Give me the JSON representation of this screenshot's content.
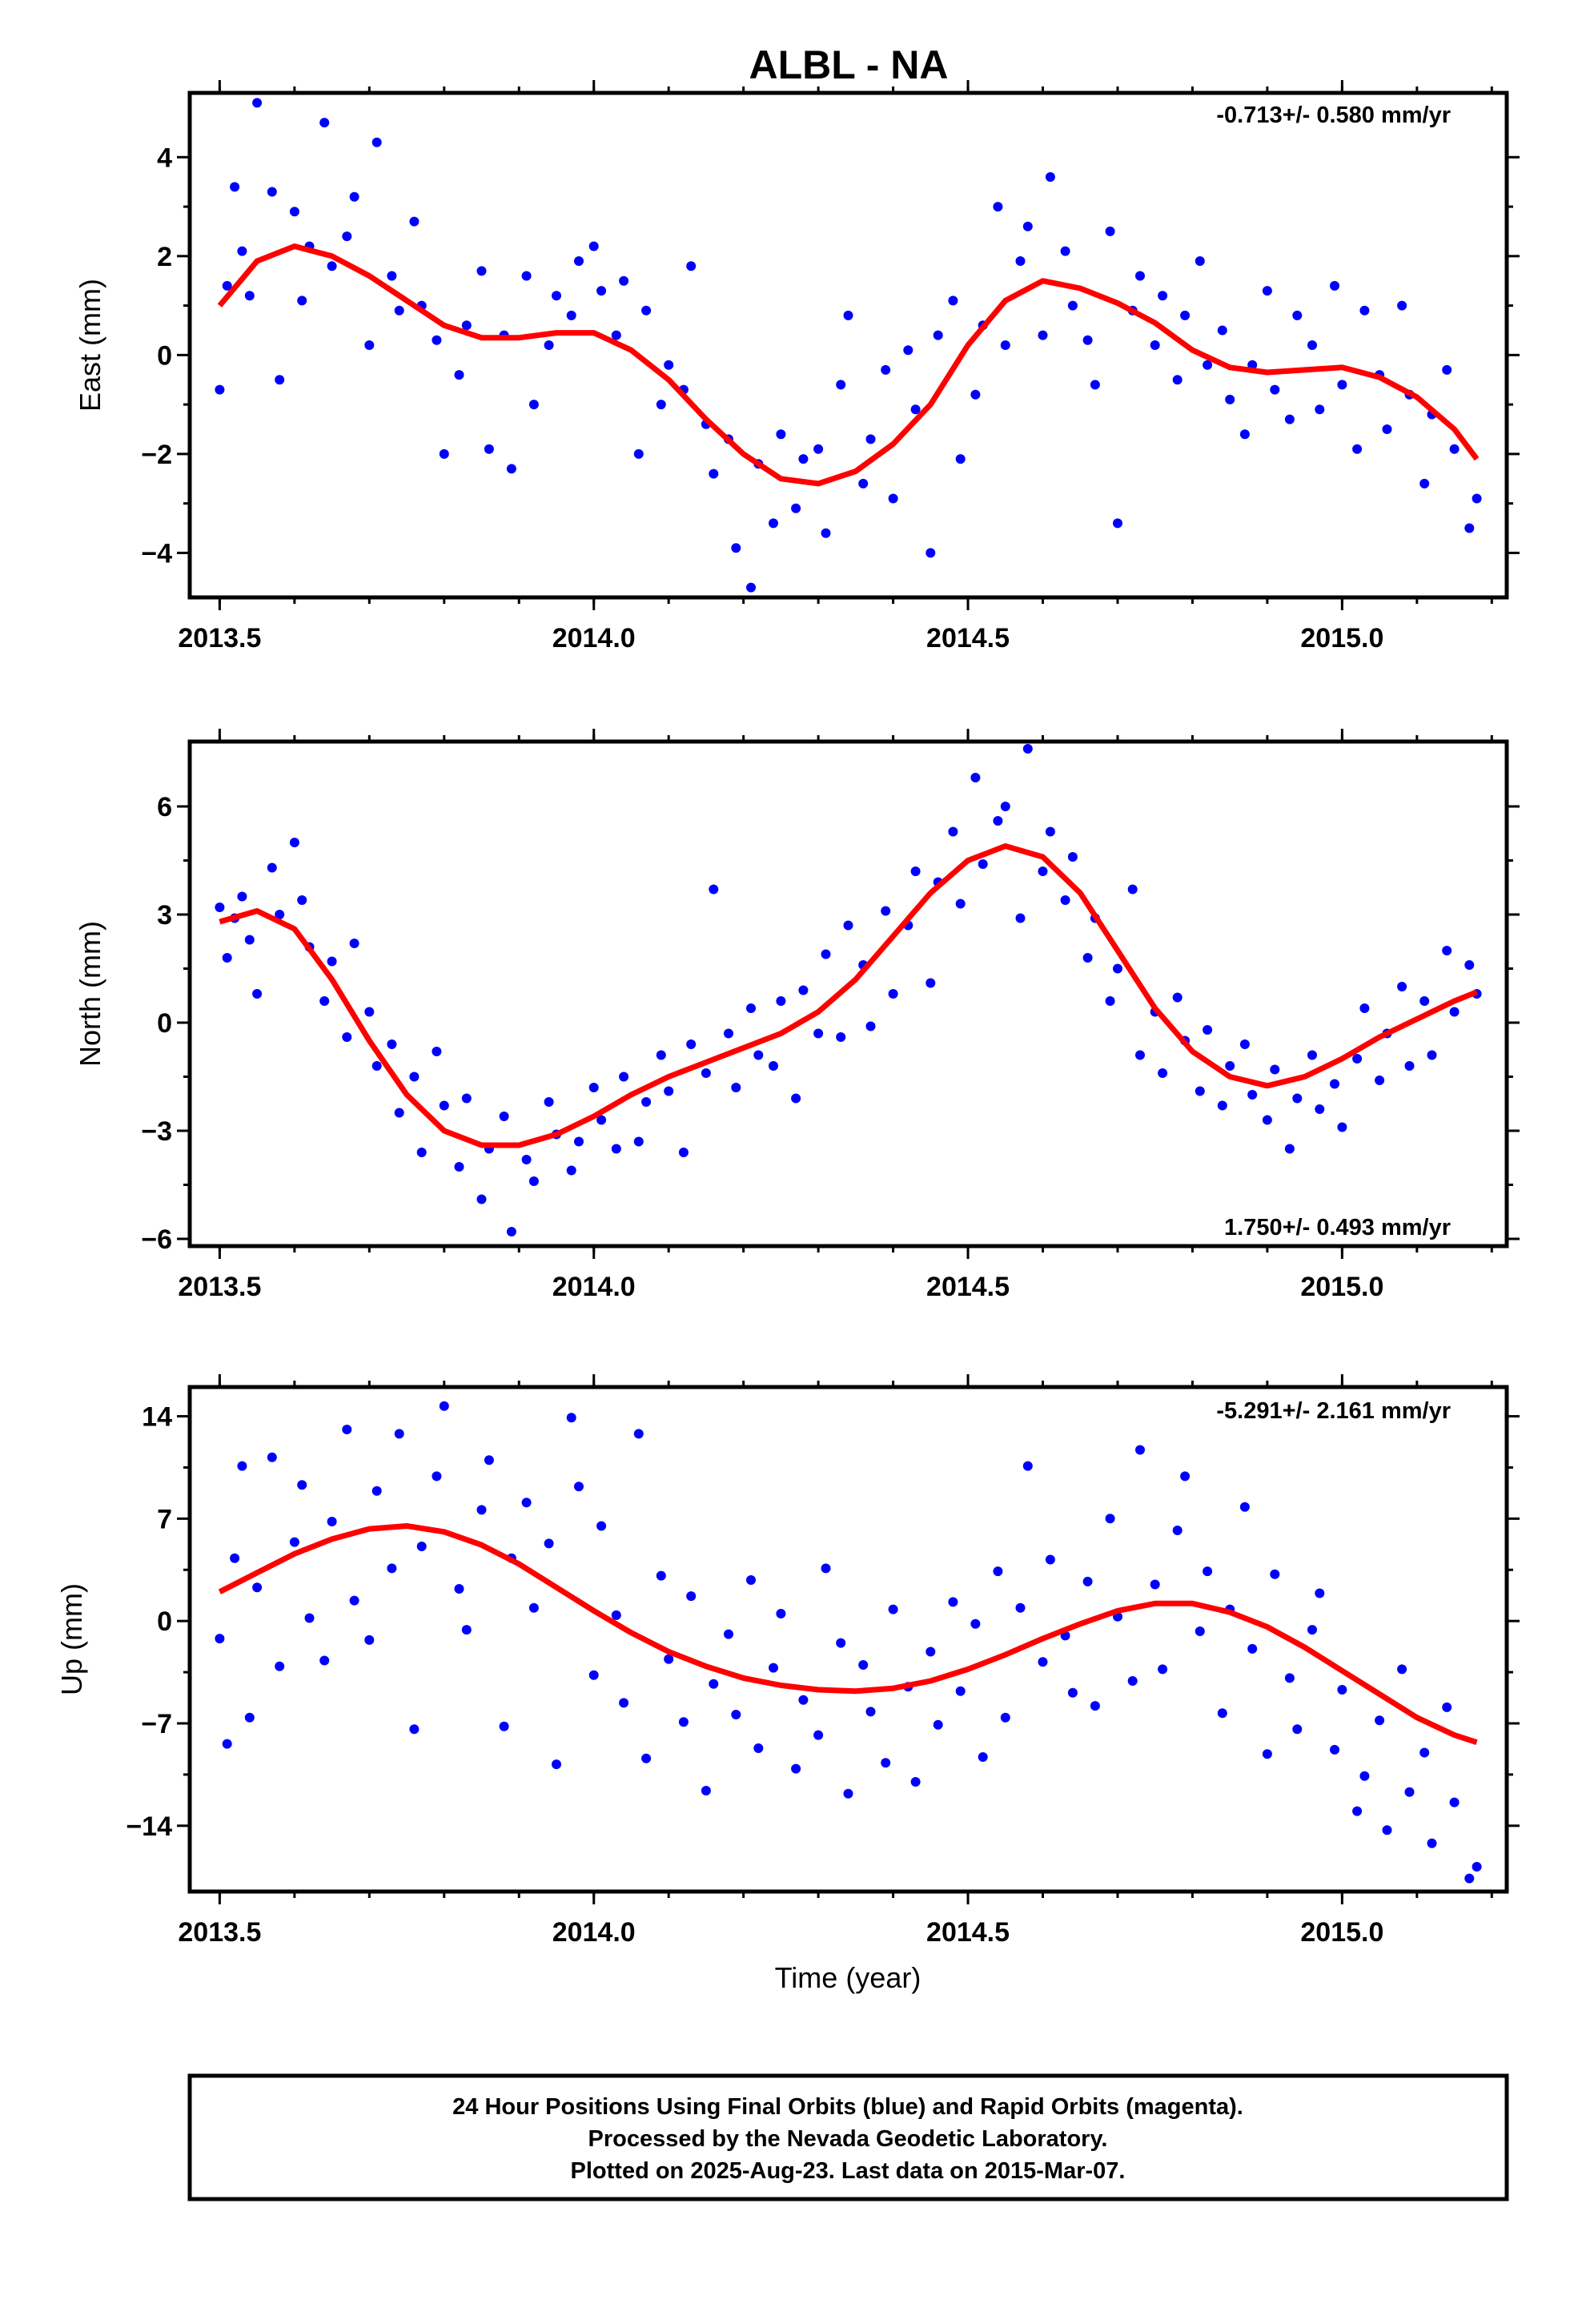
{
  "title": "ALBL - NA",
  "xlabel": "Time (year)",
  "footer": {
    "line1": "24 Hour Positions Using Final Orbits (blue) and Rapid Orbits (magenta).",
    "line2": "Processed by the Nevada Geodetic Laboratory.",
    "line3": "Plotted on 2025-Aug-23. Last data on 2015-Mar-07."
  },
  "colors": {
    "final_orbits": "#0000ff",
    "fit": "#ff0000"
  },
  "chart_data": [
    {
      "type": "scatter",
      "panel": "east",
      "ylabel": "East (mm)",
      "xlim": [
        2013.46,
        2015.22
      ],
      "ylim": [
        -4.9,
        5.3
      ],
      "xticks": [
        2013.5,
        2014.0,
        2014.5,
        2015.0
      ],
      "xtick_labels": [
        "2013.5",
        "2014.0",
        "2014.5",
        "2015.0"
      ],
      "yticks": [
        4,
        2,
        0,
        -2,
        -4
      ],
      "ytick_labels": [
        "4",
        "2",
        "0",
        "−2",
        "−4"
      ],
      "rate_label": "-0.713+/- 0.580 mm/yr",
      "rate_position": "top-right",
      "fit_curve": {
        "x": [
          2013.5,
          2013.55,
          2013.6,
          2013.65,
          2013.7,
          2013.75,
          2013.8,
          2013.85,
          2013.9,
          2013.95,
          2014.0,
          2014.05,
          2014.1,
          2014.15,
          2014.2,
          2014.25,
          2014.3,
          2014.35,
          2014.4,
          2014.45,
          2014.5,
          2014.55,
          2014.6,
          2014.65,
          2014.7,
          2014.75,
          2014.8,
          2014.85,
          2014.9,
          2014.95,
          2015.0,
          2015.05,
          2015.1,
          2015.15,
          2015.18
        ],
        "y": [
          1.0,
          1.9,
          2.2,
          2.0,
          1.6,
          1.1,
          0.6,
          0.35,
          0.35,
          0.45,
          0.45,
          0.1,
          -0.5,
          -1.3,
          -2.0,
          -2.5,
          -2.6,
          -2.35,
          -1.8,
          -1.0,
          0.2,
          1.1,
          1.5,
          1.35,
          1.05,
          0.65,
          0.1,
          -0.25,
          -0.35,
          -0.3,
          -0.25,
          -0.45,
          -0.85,
          -1.5,
          -2.1
        ]
      },
      "series": [
        {
          "name": "Final Orbits",
          "x": [
            2013.5,
            2013.51,
            2013.52,
            2013.53,
            2013.54,
            2013.55,
            2013.57,
            2013.58,
            2013.6,
            2013.61,
            2013.62,
            2013.64,
            2013.65,
            2013.67,
            2013.68,
            2013.7,
            2013.71,
            2013.73,
            2013.74,
            2013.76,
            2013.77,
            2013.79,
            2013.8,
            2013.82,
            2013.83,
            2013.85,
            2013.86,
            2013.88,
            2013.89,
            2013.91,
            2013.92,
            2013.94,
            2013.95,
            2013.97,
            2013.98,
            2014.0,
            2014.01,
            2014.03,
            2014.04,
            2014.06,
            2014.07,
            2014.09,
            2014.1,
            2014.12,
            2014.13,
            2014.15,
            2014.16,
            2014.18,
            2014.19,
            2014.21,
            2014.22,
            2014.24,
            2014.25,
            2014.27,
            2014.28,
            2014.3,
            2014.31,
            2014.33,
            2014.34,
            2014.36,
            2014.37,
            2014.39,
            2014.4,
            2014.42,
            2014.43,
            2014.45,
            2014.46,
            2014.48,
            2014.49,
            2014.51,
            2014.52,
            2014.54,
            2014.55,
            2014.57,
            2014.58,
            2014.6,
            2014.61,
            2014.63,
            2014.64,
            2014.66,
            2014.67,
            2014.69,
            2014.7,
            2014.72,
            2014.73,
            2014.75,
            2014.76,
            2014.78,
            2014.79,
            2014.81,
            2014.82,
            2014.84,
            2014.85,
            2014.87,
            2014.88,
            2014.9,
            2014.91,
            2014.93,
            2014.94,
            2014.96,
            2014.97,
            2014.99,
            2015.0,
            2015.02,
            2015.03,
            2015.05,
            2015.06,
            2015.08,
            2015.09,
            2015.11,
            2015.12,
            2015.14,
            2015.15,
            2015.17,
            2015.18
          ],
          "y": [
            -0.7,
            1.4,
            3.4,
            2.1,
            1.2,
            5.1,
            3.3,
            -0.5,
            2.9,
            1.1,
            2.2,
            4.7,
            1.8,
            2.4,
            3.2,
            0.2,
            4.3,
            1.6,
            0.9,
            2.7,
            1.0,
            0.3,
            -2.0,
            -0.4,
            0.6,
            1.7,
            -1.9,
            0.4,
            -2.3,
            1.6,
            -1.0,
            0.2,
            1.2,
            0.8,
            1.9,
            2.2,
            1.3,
            0.4,
            1.5,
            -2.0,
            0.9,
            -1.0,
            -0.2,
            -0.7,
            1.8,
            -1.4,
            -2.4,
            -1.7,
            -3.9,
            -4.7,
            -2.2,
            -3.4,
            -1.6,
            -3.1,
            -2.1,
            -1.9,
            -3.6,
            -0.6,
            0.8,
            -2.6,
            -1.7,
            -0.3,
            -2.9,
            0.1,
            -1.1,
            -4.0,
            0.4,
            1.1,
            -2.1,
            -0.8,
            0.6,
            3.0,
            0.2,
            1.9,
            2.6,
            0.4,
            3.6,
            2.1,
            1.0,
            0.3,
            -0.6,
            2.5,
            -3.4,
            0.9,
            1.6,
            0.2,
            1.2,
            -0.5,
            0.8,
            1.9,
            -0.2,
            0.5,
            -0.9,
            -1.6,
            -0.2,
            1.3,
            -0.7,
            -1.3,
            0.8,
            0.2,
            -1.1,
            1.4,
            -0.6,
            -1.9,
            0.9,
            -0.4,
            -1.5,
            1.0,
            -0.8,
            -2.6,
            -1.2,
            -0.3,
            -1.9,
            -3.5,
            -2.9
          ]
        }
      ]
    },
    {
      "type": "scatter",
      "panel": "north",
      "ylabel": "North (mm)",
      "xlim": [
        2013.46,
        2015.22
      ],
      "ylim": [
        -6.2,
        7.8
      ],
      "xticks": [
        2013.5,
        2014.0,
        2014.5,
        2015.0
      ],
      "xtick_labels": [
        "2013.5",
        "2014.0",
        "2014.5",
        "2015.0"
      ],
      "yticks": [
        6,
        3,
        0,
        -3,
        -6
      ],
      "ytick_labels": [
        "6",
        "3",
        "0",
        "−3",
        "−6"
      ],
      "rate_label": "1.750+/- 0.493 mm/yr",
      "rate_position": "bottom-right",
      "fit_curve": {
        "x": [
          2013.5,
          2013.55,
          2013.6,
          2013.65,
          2013.7,
          2013.75,
          2013.8,
          2013.85,
          2013.9,
          2013.95,
          2014.0,
          2014.05,
          2014.1,
          2014.15,
          2014.2,
          2014.25,
          2014.3,
          2014.35,
          2014.4,
          2014.45,
          2014.5,
          2014.55,
          2014.6,
          2014.65,
          2014.7,
          2014.75,
          2014.8,
          2014.85,
          2014.9,
          2014.95,
          2015.0,
          2015.05,
          2015.1,
          2015.15,
          2015.18
        ],
        "y": [
          2.8,
          3.1,
          2.6,
          1.2,
          -0.5,
          -2.0,
          -3.0,
          -3.4,
          -3.4,
          -3.1,
          -2.6,
          -2.0,
          -1.5,
          -1.1,
          -0.7,
          -0.3,
          0.3,
          1.2,
          2.4,
          3.6,
          4.5,
          4.9,
          4.6,
          3.6,
          2.0,
          0.4,
          -0.8,
          -1.5,
          -1.75,
          -1.5,
          -1.0,
          -0.4,
          0.1,
          0.6,
          0.85
        ]
      },
      "series": [
        {
          "name": "Final Orbits",
          "x": [
            2013.5,
            2013.51,
            2013.52,
            2013.53,
            2013.54,
            2013.55,
            2013.57,
            2013.58,
            2013.6,
            2013.61,
            2013.62,
            2013.64,
            2013.65,
            2013.67,
            2013.68,
            2013.7,
            2013.71,
            2013.73,
            2013.74,
            2013.76,
            2013.77,
            2013.79,
            2013.8,
            2013.82,
            2013.83,
            2013.85,
            2013.86,
            2013.88,
            2013.89,
            2013.91,
            2013.92,
            2013.94,
            2013.95,
            2013.97,
            2013.98,
            2014.0,
            2014.01,
            2014.03,
            2014.04,
            2014.06,
            2014.07,
            2014.09,
            2014.1,
            2014.12,
            2014.13,
            2014.15,
            2014.16,
            2014.18,
            2014.19,
            2014.21,
            2014.22,
            2014.24,
            2014.25,
            2014.27,
            2014.28,
            2014.3,
            2014.31,
            2014.33,
            2014.34,
            2014.36,
            2014.37,
            2014.39,
            2014.4,
            2014.42,
            2014.43,
            2014.45,
            2014.46,
            2014.48,
            2014.49,
            2014.51,
            2014.52,
            2014.54,
            2014.55,
            2014.57,
            2014.58,
            2014.6,
            2014.61,
            2014.63,
            2014.64,
            2014.66,
            2014.67,
            2014.69,
            2014.7,
            2014.72,
            2014.73,
            2014.75,
            2014.76,
            2014.78,
            2014.79,
            2014.81,
            2014.82,
            2014.84,
            2014.85,
            2014.87,
            2014.88,
            2014.9,
            2014.91,
            2014.93,
            2014.94,
            2014.96,
            2014.97,
            2014.99,
            2015.0,
            2015.02,
            2015.03,
            2015.05,
            2015.06,
            2015.08,
            2015.09,
            2015.11,
            2015.12,
            2015.14,
            2015.15,
            2015.17,
            2015.18
          ],
          "y": [
            3.2,
            1.8,
            2.9,
            3.5,
            2.3,
            0.8,
            4.3,
            3.0,
            5.0,
            3.4,
            2.1,
            0.6,
            1.7,
            -0.4,
            2.2,
            0.3,
            -1.2,
            -0.6,
            -2.5,
            -1.5,
            -3.6,
            -0.8,
            -2.3,
            -4.0,
            -2.1,
            -4.9,
            -3.5,
            -2.6,
            -5.8,
            -3.8,
            -4.4,
            -2.2,
            -3.1,
            -4.1,
            -3.3,
            -1.8,
            -2.7,
            -3.5,
            -1.5,
            -3.3,
            -2.2,
            -0.9,
            -1.9,
            -3.6,
            -0.6,
            -1.4,
            3.7,
            -0.3,
            -1.8,
            0.4,
            -0.9,
            -1.2,
            0.6,
            -2.1,
            0.9,
            -0.3,
            1.9,
            -0.4,
            2.7,
            1.6,
            -0.1,
            3.1,
            0.8,
            2.7,
            4.2,
            1.1,
            3.9,
            5.3,
            3.3,
            6.8,
            4.4,
            5.6,
            6.0,
            2.9,
            7.6,
            4.2,
            5.3,
            3.4,
            4.6,
            1.8,
            2.9,
            0.6,
            1.5,
            3.7,
            -0.9,
            0.3,
            -1.4,
            0.7,
            -0.5,
            -1.9,
            -0.2,
            -2.3,
            -1.2,
            -0.6,
            -2.0,
            -2.7,
            -1.3,
            -3.5,
            -2.1,
            -0.9,
            -2.4,
            -1.7,
            -2.9,
            -1.0,
            0.4,
            -1.6,
            -0.3,
            1.0,
            -1.2,
            0.6,
            -0.9,
            2.0,
            0.3,
            1.6,
            0.8
          ]
        }
      ]
    },
    {
      "type": "scatter",
      "panel": "up",
      "ylabel": "Up (mm)",
      "xlim": [
        2013.46,
        2015.22
      ],
      "ylim": [
        -18.5,
        16.0
      ],
      "xticks": [
        2013.5,
        2014.0,
        2014.5,
        2015.0
      ],
      "xtick_labels": [
        "2013.5",
        "2014.0",
        "2014.5",
        "2015.0"
      ],
      "yticks": [
        14,
        7,
        0,
        -7,
        -14
      ],
      "ytick_labels": [
        "14",
        "7",
        "0",
        "−7",
        "−14"
      ],
      "rate_label": "-5.291+/- 2.161 mm/yr",
      "rate_position": "top-right",
      "fit_curve": {
        "x": [
          2013.5,
          2013.55,
          2013.6,
          2013.65,
          2013.7,
          2013.75,
          2013.8,
          2013.85,
          2013.9,
          2013.95,
          2014.0,
          2014.05,
          2014.1,
          2014.15,
          2014.2,
          2014.25,
          2014.3,
          2014.35,
          2014.4,
          2014.45,
          2014.5,
          2014.55,
          2014.6,
          2014.65,
          2014.7,
          2014.75,
          2014.8,
          2014.85,
          2014.9,
          2014.95,
          2015.0,
          2015.05,
          2015.1,
          2015.15,
          2015.18
        ],
        "y": [
          2.0,
          3.3,
          4.6,
          5.6,
          6.3,
          6.5,
          6.1,
          5.2,
          3.9,
          2.3,
          0.7,
          -0.8,
          -2.1,
          -3.1,
          -3.9,
          -4.4,
          -4.7,
          -4.8,
          -4.6,
          -4.1,
          -3.3,
          -2.3,
          -1.2,
          -0.2,
          0.7,
          1.2,
          1.2,
          0.6,
          -0.4,
          -1.8,
          -3.4,
          -5.0,
          -6.6,
          -7.8,
          -8.3
        ]
      },
      "series": [
        {
          "name": "Final Orbits",
          "x": [
            2013.5,
            2013.51,
            2013.52,
            2013.53,
            2013.54,
            2013.55,
            2013.57,
            2013.58,
            2013.6,
            2013.61,
            2013.62,
            2013.64,
            2013.65,
            2013.67,
            2013.68,
            2013.7,
            2013.71,
            2013.73,
            2013.74,
            2013.76,
            2013.77,
            2013.79,
            2013.8,
            2013.82,
            2013.83,
            2013.85,
            2013.86,
            2013.88,
            2013.89,
            2013.91,
            2013.92,
            2013.94,
            2013.95,
            2013.97,
            2013.98,
            2014.0,
            2014.01,
            2014.03,
            2014.04,
            2014.06,
            2014.07,
            2014.09,
            2014.1,
            2014.12,
            2014.13,
            2014.15,
            2014.16,
            2014.18,
            2014.19,
            2014.21,
            2014.22,
            2014.24,
            2014.25,
            2014.27,
            2014.28,
            2014.3,
            2014.31,
            2014.33,
            2014.34,
            2014.36,
            2014.37,
            2014.39,
            2014.4,
            2014.42,
            2014.43,
            2014.45,
            2014.46,
            2014.48,
            2014.49,
            2014.51,
            2014.52,
            2014.54,
            2014.55,
            2014.57,
            2014.58,
            2014.6,
            2014.61,
            2014.63,
            2014.64,
            2014.66,
            2014.67,
            2014.69,
            2014.7,
            2014.72,
            2014.73,
            2014.75,
            2014.76,
            2014.78,
            2014.79,
            2014.81,
            2014.82,
            2014.84,
            2014.85,
            2014.87,
            2014.88,
            2014.9,
            2014.91,
            2014.93,
            2014.94,
            2014.96,
            2014.97,
            2014.99,
            2015.0,
            2015.02,
            2015.03,
            2015.05,
            2015.06,
            2015.08,
            2015.09,
            2015.11,
            2015.12,
            2015.14,
            2015.15,
            2015.17,
            2015.18
          ],
          "y": [
            -1.2,
            -8.4,
            4.3,
            10.6,
            -6.6,
            2.3,
            11.2,
            -3.1,
            5.4,
            9.3,
            0.2,
            -2.7,
            6.8,
            13.1,
            1.4,
            -1.3,
            8.9,
            3.6,
            12.8,
            -7.4,
            5.1,
            9.9,
            14.7,
            2.2,
            -0.6,
            7.6,
            11.0,
            -7.2,
            4.3,
            8.1,
            0.9,
            5.3,
            -9.8,
            13.9,
            9.2,
            -3.7,
            6.5,
            0.4,
            -5.6,
            12.8,
            -9.4,
            3.1,
            -2.6,
            -6.9,
            1.7,
            -11.6,
            -4.3,
            -0.9,
            -6.4,
            2.8,
            -8.7,
            -3.2,
            0.5,
            -10.1,
            -5.4,
            -7.8,
            3.6,
            -1.5,
            -11.8,
            -3.0,
            -6.2,
            -9.7,
            0.8,
            -4.5,
            -11.0,
            -2.1,
            -7.1,
            1.3,
            -4.8,
            -0.2,
            -9.3,
            3.4,
            -6.6,
            0.9,
            10.6,
            -2.8,
            4.2,
            -1.0,
            -4.9,
            2.7,
            -5.8,
            7.0,
            0.3,
            -4.1,
            11.7,
            2.5,
            -3.3,
            6.2,
            9.9,
            -0.7,
            3.4,
            -6.3,
            0.8,
            7.8,
            -1.9,
            -9.1,
            3.2,
            -3.9,
            -7.4,
            -0.6,
            1.9,
            -8.8,
            -4.7,
            -13.0,
            -10.6,
            -6.8,
            -14.3,
            -3.3,
            -11.7,
            -9.0,
            -15.2,
            -5.9,
            -12.4,
            -17.6,
            -16.8
          ]
        }
      ]
    }
  ]
}
